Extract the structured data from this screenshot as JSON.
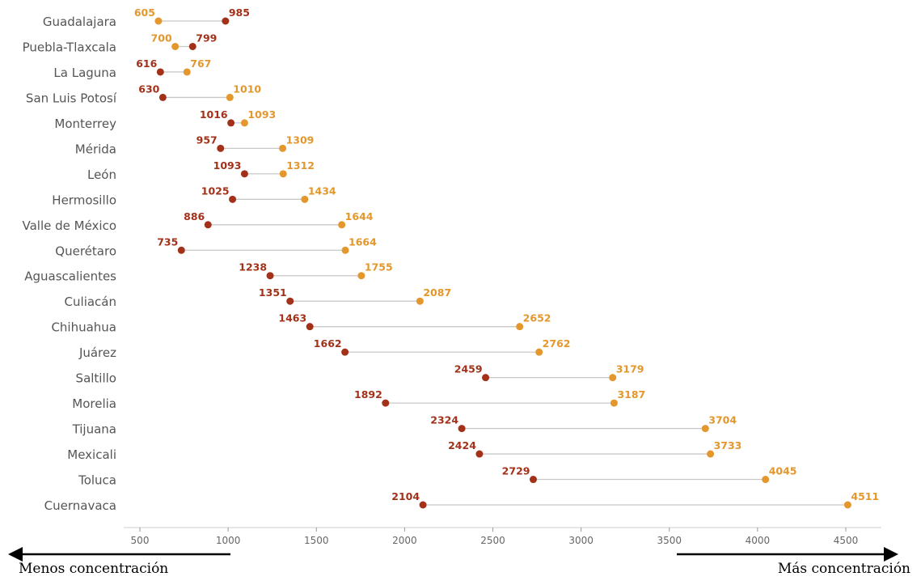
{
  "chart_data": {
    "type": "dumbbell",
    "title": "",
    "xlabel": "",
    "ylabel": "",
    "xlim": [
      430,
      4720
    ],
    "xticks": [
      500,
      1000,
      1500,
      2000,
      2500,
      3000,
      3500,
      4000,
      4500
    ],
    "grid": false,
    "colors": {
      "series_a": "#a33119",
      "series_b": "#e3972c",
      "connector": "#c8c8c8"
    },
    "categories": [
      "Guadalajara",
      "Puebla-Tlaxcala",
      "La Laguna",
      "San Luis Potosí",
      "Monterrey",
      "Mérida",
      "León",
      "Hermosillo",
      "Valle de México",
      "Querétaro",
      "Aguascalientes",
      "Culiacán",
      "Chihuahua",
      "Juárez",
      "Saltillo",
      "Morelia",
      "Tijuana",
      "Mexicali",
      "Toluca",
      "Cuernavaca"
    ],
    "series": [
      {
        "key": "series_a",
        "values": [
          985,
          799,
          616,
          630,
          1016,
          957,
          1093,
          1025,
          886,
          735,
          1238,
          1351,
          1463,
          1662,
          2459,
          1892,
          2324,
          2424,
          2729,
          2104
        ]
      },
      {
        "key": "series_b",
        "values": [
          605,
          700,
          767,
          1010,
          1093,
          1309,
          1312,
          1434,
          1644,
          1664,
          1755,
          2087,
          2652,
          2762,
          3179,
          3187,
          3704,
          3733,
          4045,
          4511
        ]
      }
    ],
    "annotations": {
      "left": "Menos concentración",
      "right": "Más concentración"
    }
  }
}
